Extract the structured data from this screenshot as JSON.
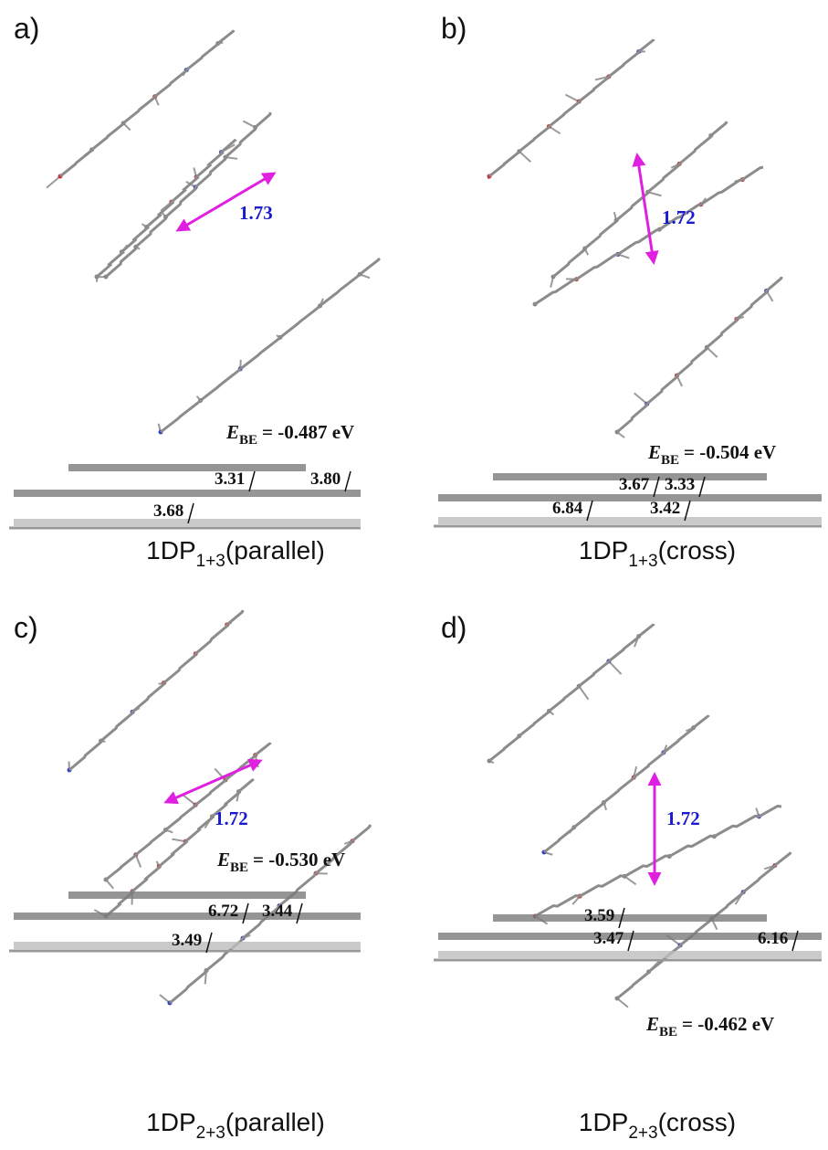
{
  "panels": [
    {
      "label": "a)",
      "distance": "1.73",
      "energy": {
        "symbol": "E",
        "subscript": "BE",
        "value": "= -0.487 eV"
      },
      "gaps": [
        "3.31",
        "3.80",
        "3.68"
      ],
      "caption": {
        "main": "1DP",
        "subscript": "1+3",
        "suffix": "(parallel)"
      }
    },
    {
      "label": "b)",
      "distance": "1.72",
      "energy": {
        "symbol": "E",
        "subscript": "BE",
        "value": "= -0.504 eV"
      },
      "gaps": [
        "3.67",
        "3.33",
        "6.84",
        "3.42"
      ],
      "caption": {
        "main": "1DP",
        "subscript": "1+3",
        "suffix": "(cross)"
      }
    },
    {
      "label": "c)",
      "distance": "1.72",
      "energy": {
        "symbol": "E",
        "subscript": "BE",
        "value": "= -0.530 eV"
      },
      "gaps": [
        "6.72",
        "3.44",
        "3.49"
      ],
      "caption": {
        "main": "1DP",
        "subscript": "2+3",
        "suffix": "(parallel)"
      }
    },
    {
      "label": "d)",
      "distance": "1.72",
      "energy": {
        "symbol": "E",
        "subscript": "BE",
        "value": "= -0.462 eV"
      },
      "gaps": [
        "3.59",
        "3.47",
        "6.16"
      ],
      "caption": {
        "main": "1DP",
        "subscript": "2+3",
        "suffix": "(cross)"
      }
    }
  ]
}
